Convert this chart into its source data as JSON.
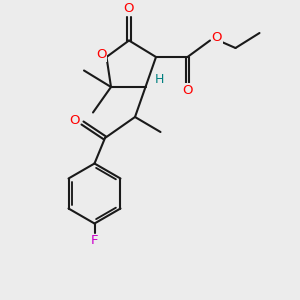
{
  "bg_color": "#ececec",
  "bond_color": "#1a1a1a",
  "oxygen_color": "#ff0000",
  "fluorine_color": "#cc00cc",
  "hydrogen_color": "#008080",
  "line_width": 1.5,
  "figsize": [
    3.0,
    3.0
  ],
  "dpi": 100,
  "xlim": [
    0,
    10
  ],
  "ylim": [
    0,
    10
  ]
}
